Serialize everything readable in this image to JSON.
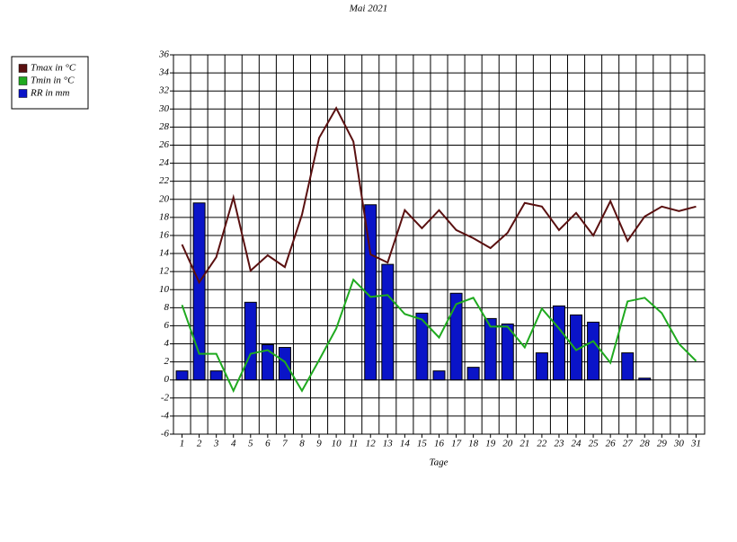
{
  "chart_data": {
    "type": "bar-line",
    "title": "Mai 2021",
    "x_label": "Tage",
    "categories": [
      "1",
      "2",
      "3",
      "4",
      "5",
      "6",
      "7",
      "8",
      "9",
      "10",
      "11",
      "12",
      "13",
      "14",
      "15",
      "16",
      "17",
      "18",
      "19",
      "20",
      "21",
      "22",
      "23",
      "24",
      "25",
      "26",
      "27",
      "28",
      "29",
      "30",
      "31"
    ],
    "series": [
      {
        "name": "Tmax in °C",
        "kind": "line",
        "color": "#5a1010",
        "values": [
          15,
          10.8,
          13.6,
          20.2,
          12.1,
          13.8,
          12.5,
          18.3,
          26.8,
          30.1,
          26.4,
          13.9,
          13,
          18.8,
          16.8,
          18.8,
          16.6,
          15.7,
          14.6,
          16.3,
          19.6,
          19.2,
          16.6,
          18.5,
          16,
          19.8,
          15.4,
          18.1,
          19.2,
          18.7,
          19.2
        ]
      },
      {
        "name": "Tmin in °C",
        "kind": "line",
        "color": "#1faa1f",
        "values": [
          8.3,
          2.9,
          2.9,
          -1.2,
          2.9,
          3.3,
          2,
          -1.2,
          2.2,
          5.7,
          11.1,
          9.2,
          9.4,
          7.3,
          6.7,
          4.7,
          8.4,
          9.1,
          5.9,
          5.9,
          3.6,
          7.9,
          5.7,
          3.3,
          4.3,
          1.9,
          8.7,
          9.1,
          7.4,
          4,
          2.1
        ]
      },
      {
        "name": "RR in mm",
        "kind": "bar",
        "color": "#0a14c8",
        "values": [
          1,
          19.6,
          1,
          0,
          8.6,
          3.9,
          3.6,
          0,
          0,
          0,
          0,
          19.4,
          12.8,
          0,
          7.4,
          1,
          9.6,
          1.4,
          6.8,
          6.2,
          0,
          3,
          8.2,
          7.2,
          6.4,
          0,
          3,
          0.2,
          0,
          0,
          0
        ]
      }
    ],
    "ylim": [
      -6,
      36
    ],
    "yticks": [
      -6,
      -4,
      -2,
      0,
      2,
      4,
      6,
      8,
      10,
      12,
      14,
      16,
      18,
      20,
      22,
      24,
      26,
      28,
      30,
      32,
      34,
      36
    ],
    "grid": true,
    "legend": "top-left"
  }
}
